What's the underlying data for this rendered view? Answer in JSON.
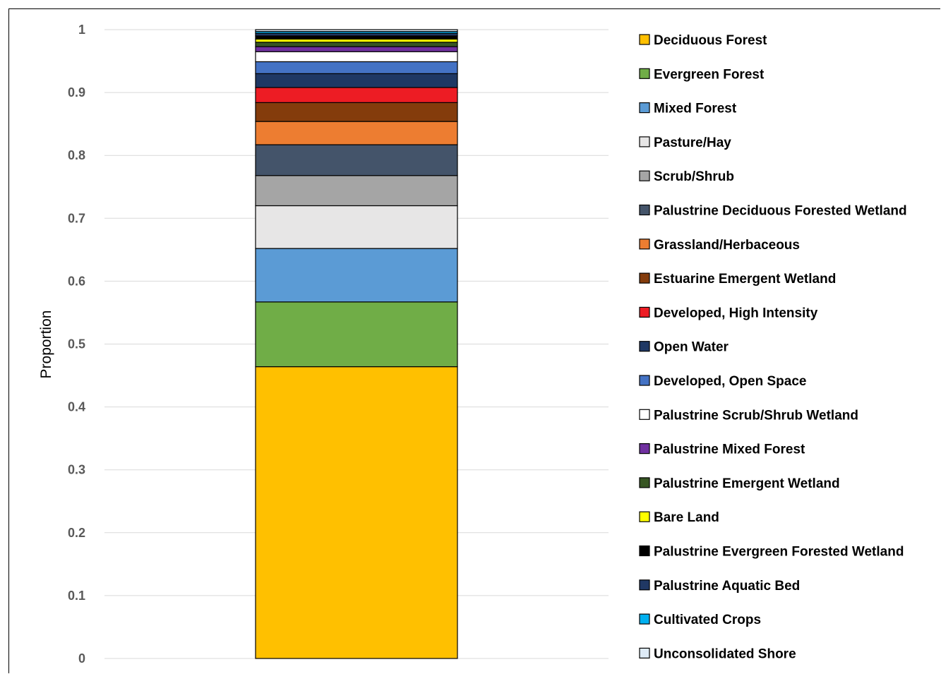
{
  "chart_data": {
    "type": "bar",
    "stacked": true,
    "title": "",
    "xlabel": "",
    "ylabel": "Proportion",
    "ylim": [
      0,
      1
    ],
    "yticks": [
      "0",
      "0.1",
      "0.2",
      "0.3",
      "0.4",
      "0.5",
      "0.6",
      "0.7",
      "0.8",
      "0.9",
      "1"
    ],
    "grid": true,
    "legend_position": "right",
    "series": [
      {
        "name": "Deciduous Forest",
        "value": 0.464,
        "color": "#FFC000"
      },
      {
        "name": "Evergreen Forest",
        "value": 0.103,
        "color": "#70AD47"
      },
      {
        "name": "Mixed Forest",
        "value": 0.085,
        "color": "#5B9BD5"
      },
      {
        "name": "Pasture/Hay",
        "value": 0.068,
        "color": "#E7E6E6"
      },
      {
        "name": "Scrub/Shrub",
        "value": 0.048,
        "color": "#A5A5A5"
      },
      {
        "name": "Palustrine Deciduous Forested Wetland",
        "value": 0.049,
        "color": "#44546A"
      },
      {
        "name": "Grassland/Herbaceous",
        "value": 0.037,
        "color": "#ED7D31"
      },
      {
        "name": "Estuarine Emergent Wetland",
        "value": 0.03,
        "color": "#843C0C"
      },
      {
        "name": "Developed, High Intensity",
        "value": 0.024,
        "color": "#ED1C24"
      },
      {
        "name": "Open Water",
        "value": 0.022,
        "color": "#1F3864"
      },
      {
        "name": "Developed, Open Space",
        "value": 0.019,
        "color": "#4472C4"
      },
      {
        "name": "Palustrine Scrub/Shrub Wetland",
        "value": 0.016,
        "color": "#FFFFFF"
      },
      {
        "name": "Palustrine Mixed Forest",
        "value": 0.008,
        "color": "#7030A0"
      },
      {
        "name": "Palustrine Emergent Wetland",
        "value": 0.007,
        "color": "#375623"
      },
      {
        "name": "Bare Land",
        "value": 0.005,
        "color": "#FFFF00"
      },
      {
        "name": "Palustrine Evergreen Forested Wetland",
        "value": 0.005,
        "color": "#000000"
      },
      {
        "name": "Palustrine Aquatic Bed",
        "value": 0.004,
        "color": "#203864"
      },
      {
        "name": "Cultivated Crops",
        "value": 0.003,
        "color": "#00B0F0"
      },
      {
        "name": "Unconsolidated Shore",
        "value": 0.003,
        "color": "#DEEBF7"
      }
    ]
  }
}
